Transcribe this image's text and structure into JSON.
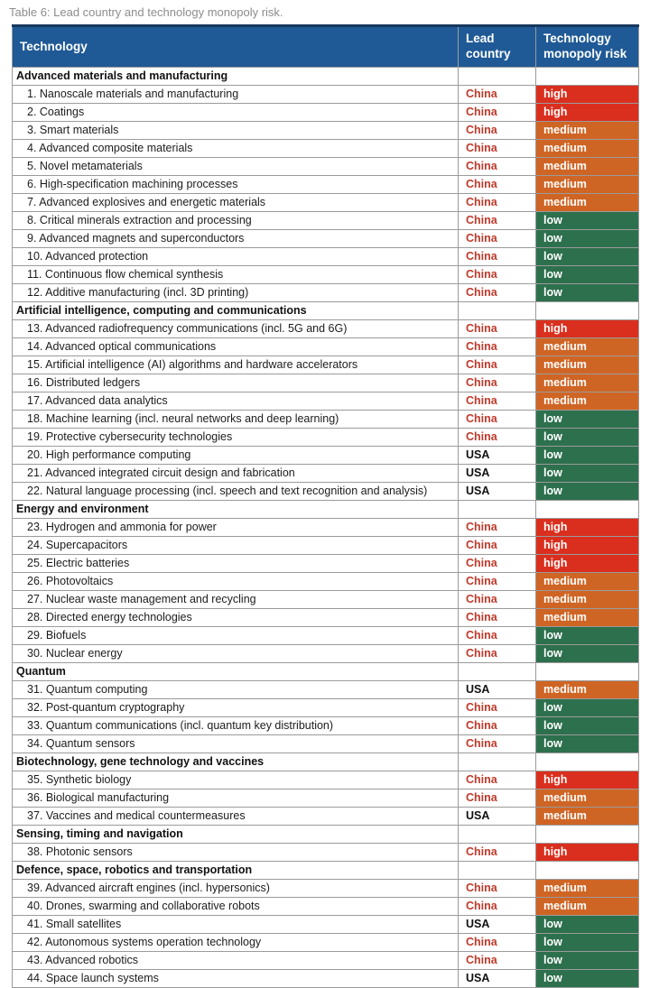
{
  "caption": "Table 6: Lead country and technology monopoly risk.",
  "colors": {
    "header_bg": "#1f5a96",
    "risk_high": "#da2f1e",
    "risk_medium": "#cf6524",
    "risk_low": "#2d704d",
    "china_text": "#bf3a2b",
    "usa_text": "#111111",
    "caption_text": "#8c8c8c"
  },
  "table": {
    "headers": [
      "Technology",
      "Lead country",
      "Technology monopoly risk"
    ],
    "sections": [
      {
        "name": "Advanced materials and manufacturing",
        "rows": [
          {
            "no": 1,
            "tech": "Nanoscale materials and manufacturing",
            "country": "China",
            "risk": "high"
          },
          {
            "no": 2,
            "tech": "Coatings",
            "country": "China",
            "risk": "high"
          },
          {
            "no": 3,
            "tech": "Smart materials",
            "country": "China",
            "risk": "medium"
          },
          {
            "no": 4,
            "tech": "Advanced composite materials",
            "country": "China",
            "risk": "medium"
          },
          {
            "no": 5,
            "tech": "Novel metamaterials",
            "country": "China",
            "risk": "medium"
          },
          {
            "no": 6,
            "tech": "High-specification machining processes",
            "country": "China",
            "risk": "medium"
          },
          {
            "no": 7,
            "tech": "Advanced explosives and energetic materials",
            "country": "China",
            "risk": "medium"
          },
          {
            "no": 8,
            "tech": "Critical minerals extraction and processing",
            "country": "China",
            "risk": "low"
          },
          {
            "no": 9,
            "tech": "Advanced magnets and superconductors",
            "country": "China",
            "risk": "low"
          },
          {
            "no": 10,
            "tech": "Advanced protection",
            "country": "China",
            "risk": "low"
          },
          {
            "no": 11,
            "tech": "Continuous flow chemical synthesis",
            "country": "China",
            "risk": "low"
          },
          {
            "no": 12,
            "tech": "Additive manufacturing (incl. 3D printing)",
            "country": "China",
            "risk": "low"
          }
        ]
      },
      {
        "name": "Artificial intelligence, computing and communications",
        "rows": [
          {
            "no": 13,
            "tech": "Advanced radiofrequency communications (incl. 5G and 6G)",
            "country": "China",
            "risk": "high"
          },
          {
            "no": 14,
            "tech": "Advanced optical communications",
            "country": "China",
            "risk": "medium"
          },
          {
            "no": 15,
            "tech": "Artificial intelligence (AI) algorithms and hardware accelerators",
            "country": "China",
            "risk": "medium"
          },
          {
            "no": 16,
            "tech": "Distributed ledgers",
            "country": "China",
            "risk": "medium"
          },
          {
            "no": 17,
            "tech": "Advanced data analytics",
            "country": "China",
            "risk": "medium"
          },
          {
            "no": 18,
            "tech": "Machine learning (incl. neural networks and deep learning)",
            "country": "China",
            "risk": "low"
          },
          {
            "no": 19,
            "tech": "Protective cybersecurity technologies",
            "country": "China",
            "risk": "low"
          },
          {
            "no": 20,
            "tech": "High performance computing",
            "country": "USA",
            "risk": "low"
          },
          {
            "no": 21,
            "tech": "Advanced integrated circuit design and fabrication",
            "country": "USA",
            "risk": "low"
          },
          {
            "no": 22,
            "tech": "Natural language processing (incl. speech and text recognition and analysis)",
            "country": "USA",
            "risk": "low"
          }
        ]
      },
      {
        "name": "Energy and environment",
        "rows": [
          {
            "no": 23,
            "tech": "Hydrogen and ammonia for power",
            "country": "China",
            "risk": "high"
          },
          {
            "no": 24,
            "tech": "Supercapacitors",
            "country": "China",
            "risk": "high"
          },
          {
            "no": 25,
            "tech": "Electric batteries",
            "country": "China",
            "risk": "high"
          },
          {
            "no": 26,
            "tech": "Photovoltaics",
            "country": "China",
            "risk": "medium"
          },
          {
            "no": 27,
            "tech": "Nuclear waste management and recycling",
            "country": "China",
            "risk": "medium"
          },
          {
            "no": 28,
            "tech": "Directed energy technologies",
            "country": "China",
            "risk": "medium"
          },
          {
            "no": 29,
            "tech": "Biofuels",
            "country": "China",
            "risk": "low"
          },
          {
            "no": 30,
            "tech": "Nuclear energy",
            "country": "China",
            "risk": "low"
          }
        ]
      },
      {
        "name": "Quantum",
        "rows": [
          {
            "no": 31,
            "tech": "Quantum computing",
            "country": "USA",
            "risk": "medium"
          },
          {
            "no": 32,
            "tech": "Post-quantum cryptography",
            "country": "China",
            "risk": "low"
          },
          {
            "no": 33,
            "tech": "Quantum communications (incl. quantum key distribution)",
            "country": "China",
            "risk": "low"
          },
          {
            "no": 34,
            "tech": "Quantum sensors",
            "country": "China",
            "risk": "low"
          }
        ]
      },
      {
        "name": "Biotechnology, gene technology and vaccines",
        "rows": [
          {
            "no": 35,
            "tech": "Synthetic biology",
            "country": "China",
            "risk": "high"
          },
          {
            "no": 36,
            "tech": "Biological manufacturing",
            "country": "China",
            "risk": "medium"
          },
          {
            "no": 37,
            "tech": "Vaccines and medical countermeasures",
            "country": "USA",
            "risk": "medium"
          }
        ]
      },
      {
        "name": "Sensing, timing and navigation",
        "rows": [
          {
            "no": 38,
            "tech": "Photonic sensors",
            "country": "China",
            "risk": "high"
          }
        ]
      },
      {
        "name": "Defence, space, robotics and transportation",
        "rows": [
          {
            "no": 39,
            "tech": "Advanced aircraft engines (incl. hypersonics)",
            "country": "China",
            "risk": "medium"
          },
          {
            "no": 40,
            "tech": "Drones, swarming and collaborative robots",
            "country": "China",
            "risk": "medium"
          },
          {
            "no": 41,
            "tech": "Small satellites",
            "country": "USA",
            "risk": "low"
          },
          {
            "no": 42,
            "tech": "Autonomous systems operation technology",
            "country": "China",
            "risk": "low"
          },
          {
            "no": 43,
            "tech": "Advanced robotics",
            "country": "China",
            "risk": "low"
          },
          {
            "no": 44,
            "tech": "Space launch systems",
            "country": "USA",
            "risk": "low"
          }
        ]
      }
    ]
  }
}
